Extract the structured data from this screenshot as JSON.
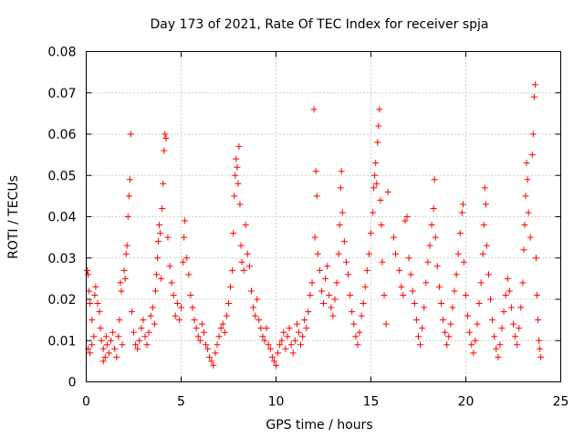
{
  "chart_data": {
    "type": "scatter",
    "title": "Day 173 of 2021, Rate Of TEC Index for receiver spja",
    "xlabel": "GPS time / hours",
    "ylabel": "ROTI / TECUs",
    "xlim": [
      0,
      25
    ],
    "ylim": [
      0,
      0.08
    ],
    "xticks": [
      0,
      5,
      10,
      15,
      20,
      25
    ],
    "xtick_labels": [
      "0",
      "5",
      "10",
      "15",
      "20",
      "25"
    ],
    "yticks": [
      0,
      0.01,
      0.02,
      0.03,
      0.04,
      0.05,
      0.06,
      0.07,
      0.08
    ],
    "ytick_labels": [
      "0",
      "0.01",
      "0.02",
      "0.03",
      "0.04",
      "0.05",
      "0.06",
      "0.07",
      "0.08"
    ],
    "grid": true,
    "marker": "+",
    "series": [
      {
        "name": "spja",
        "color": "#ff0000",
        "points": [
          [
            0.05,
            0.027
          ],
          [
            0.1,
            0.026
          ],
          [
            0.15,
            0.022
          ],
          [
            0.2,
            0.019
          ],
          [
            0.3,
            0.015
          ],
          [
            0.1,
            0.008
          ],
          [
            0.2,
            0.007
          ],
          [
            0.3,
            0.009
          ],
          [
            0.4,
            0.011
          ],
          [
            0.45,
            0.021
          ],
          [
            0.5,
            0.023
          ],
          [
            0.6,
            0.019
          ],
          [
            0.7,
            0.017
          ],
          [
            0.75,
            0.013
          ],
          [
            0.8,
            0.01
          ],
          [
            0.9,
            0.008
          ],
          [
            0.9,
            0.005
          ],
          [
            1.0,
            0.006
          ],
          [
            1.05,
            0.011
          ],
          [
            1.1,
            0.009
          ],
          [
            1.2,
            0.007
          ],
          [
            1.3,
            0.01
          ],
          [
            1.4,
            0.012
          ],
          [
            1.5,
            0.008
          ],
          [
            1.6,
            0.006
          ],
          [
            1.7,
            0.011
          ],
          [
            1.75,
            0.015
          ],
          [
            1.8,
            0.024
          ],
          [
            1.85,
            0.022
          ],
          [
            1.9,
            0.009
          ],
          [
            2.0,
            0.027
          ],
          [
            2.05,
            0.025
          ],
          [
            2.1,
            0.031
          ],
          [
            2.15,
            0.033
          ],
          [
            2.2,
            0.04
          ],
          [
            2.25,
            0.045
          ],
          [
            2.3,
            0.049
          ],
          [
            2.35,
            0.06
          ],
          [
            2.4,
            0.017
          ],
          [
            2.5,
            0.012
          ],
          [
            2.6,
            0.009
          ],
          [
            2.7,
            0.008
          ],
          [
            2.8,
            0.01
          ],
          [
            2.9,
            0.013
          ],
          [
            3.0,
            0.015
          ],
          [
            3.1,
            0.011
          ],
          [
            3.2,
            0.009
          ],
          [
            3.3,
            0.012
          ],
          [
            3.4,
            0.016
          ],
          [
            3.5,
            0.018
          ],
          [
            3.6,
            0.014
          ],
          [
            3.65,
            0.022
          ],
          [
            3.7,
            0.026
          ],
          [
            3.75,
            0.03
          ],
          [
            3.8,
            0.034
          ],
          [
            3.85,
            0.038
          ],
          [
            3.9,
            0.036
          ],
          [
            3.95,
            0.025
          ],
          [
            4.0,
            0.042
          ],
          [
            4.05,
            0.048
          ],
          [
            4.1,
            0.056
          ],
          [
            4.15,
            0.06
          ],
          [
            4.2,
            0.059
          ],
          [
            4.3,
            0.035
          ],
          [
            4.4,
            0.028
          ],
          [
            4.5,
            0.024
          ],
          [
            4.6,
            0.021
          ],
          [
            4.7,
            0.016
          ],
          [
            4.8,
            0.019
          ],
          [
            4.9,
            0.015
          ],
          [
            5.0,
            0.018
          ],
          [
            5.1,
            0.029
          ],
          [
            5.15,
            0.035
          ],
          [
            5.2,
            0.039
          ],
          [
            5.3,
            0.03
          ],
          [
            5.4,
            0.026
          ],
          [
            5.5,
            0.021
          ],
          [
            5.6,
            0.018
          ],
          [
            5.7,
            0.015
          ],
          [
            5.8,
            0.013
          ],
          [
            5.9,
            0.011
          ],
          [
            6.0,
            0.01
          ],
          [
            6.1,
            0.014
          ],
          [
            6.2,
            0.012
          ],
          [
            6.3,
            0.009
          ],
          [
            6.4,
            0.008
          ],
          [
            6.5,
            0.006
          ],
          [
            6.6,
            0.005
          ],
          [
            6.7,
            0.004
          ],
          [
            6.8,
            0.007
          ],
          [
            6.9,
            0.009
          ],
          [
            7.0,
            0.011
          ],
          [
            7.1,
            0.013
          ],
          [
            7.2,
            0.014
          ],
          [
            7.3,
            0.012
          ],
          [
            7.4,
            0.016
          ],
          [
            7.5,
            0.019
          ],
          [
            7.6,
            0.023
          ],
          [
            7.7,
            0.027
          ],
          [
            7.75,
            0.036
          ],
          [
            7.8,
            0.045
          ],
          [
            7.85,
            0.05
          ],
          [
            7.9,
            0.054
          ],
          [
            7.95,
            0.052
          ],
          [
            8.0,
            0.048
          ],
          [
            8.05,
            0.057
          ],
          [
            8.1,
            0.043
          ],
          [
            8.15,
            0.033
          ],
          [
            8.2,
            0.029
          ],
          [
            8.3,
            0.027
          ],
          [
            8.4,
            0.038
          ],
          [
            8.5,
            0.031
          ],
          [
            8.6,
            0.028
          ],
          [
            8.7,
            0.022
          ],
          [
            8.8,
            0.018
          ],
          [
            8.9,
            0.016
          ],
          [
            9.0,
            0.02
          ],
          [
            9.1,
            0.015
          ],
          [
            9.2,
            0.013
          ],
          [
            9.3,
            0.011
          ],
          [
            9.4,
            0.01
          ],
          [
            9.5,
            0.013
          ],
          [
            9.6,
            0.009
          ],
          [
            9.7,
            0.008
          ],
          [
            9.8,
            0.006
          ],
          [
            9.9,
            0.005
          ],
          [
            10.0,
            0.004
          ],
          [
            10.1,
            0.007
          ],
          [
            10.2,
            0.009
          ],
          [
            10.3,
            0.01
          ],
          [
            10.4,
            0.012
          ],
          [
            10.5,
            0.008
          ],
          [
            10.6,
            0.011
          ],
          [
            10.7,
            0.013
          ],
          [
            10.8,
            0.009
          ],
          [
            10.9,
            0.007
          ],
          [
            11.0,
            0.01
          ],
          [
            11.1,
            0.014
          ],
          [
            11.2,
            0.012
          ],
          [
            11.3,
            0.009
          ],
          [
            11.4,
            0.011
          ],
          [
            11.5,
            0.015
          ],
          [
            11.6,
            0.013
          ],
          [
            11.7,
            0.017
          ],
          [
            11.8,
            0.021
          ],
          [
            11.9,
            0.024
          ],
          [
            12.0,
            0.066
          ],
          [
            12.05,
            0.035
          ],
          [
            12.1,
            0.051
          ],
          [
            12.15,
            0.045
          ],
          [
            12.2,
            0.031
          ],
          [
            12.3,
            0.027
          ],
          [
            12.4,
            0.022
          ],
          [
            12.5,
            0.019
          ],
          [
            12.6,
            0.025
          ],
          [
            12.7,
            0.028
          ],
          [
            12.8,
            0.021
          ],
          [
            12.9,
            0.018
          ],
          [
            13.0,
            0.016
          ],
          [
            13.1,
            0.02
          ],
          [
            13.2,
            0.024
          ],
          [
            13.3,
            0.031
          ],
          [
            13.35,
            0.038
          ],
          [
            13.4,
            0.047
          ],
          [
            13.45,
            0.051
          ],
          [
            13.5,
            0.041
          ],
          [
            13.6,
            0.034
          ],
          [
            13.7,
            0.029
          ],
          [
            13.8,
            0.026
          ],
          [
            13.9,
            0.021
          ],
          [
            14.0,
            0.017
          ],
          [
            14.1,
            0.014
          ],
          [
            14.2,
            0.011
          ],
          [
            14.3,
            0.009
          ],
          [
            14.4,
            0.012
          ],
          [
            14.5,
            0.016
          ],
          [
            14.6,
            0.019
          ],
          [
            14.7,
            0.023
          ],
          [
            14.8,
            0.027
          ],
          [
            14.9,
            0.031
          ],
          [
            15.0,
            0.036
          ],
          [
            15.1,
            0.041
          ],
          [
            15.15,
            0.047
          ],
          [
            15.2,
            0.05
          ],
          [
            15.25,
            0.053
          ],
          [
            15.3,
            0.048
          ],
          [
            15.35,
            0.058
          ],
          [
            15.4,
            0.062
          ],
          [
            15.45,
            0.066
          ],
          [
            15.5,
            0.044
          ],
          [
            15.55,
            0.038
          ],
          [
            15.6,
            0.029
          ],
          [
            15.7,
            0.021
          ],
          [
            15.8,
            0.014
          ],
          [
            15.9,
            0.046
          ],
          [
            16.2,
            0.035
          ],
          [
            16.3,
            0.031
          ],
          [
            16.5,
            0.027
          ],
          [
            16.6,
            0.023
          ],
          [
            16.7,
            0.021
          ],
          [
            16.8,
            0.039
          ],
          [
            16.9,
            0.04
          ],
          [
            17.0,
            0.03
          ],
          [
            17.1,
            0.026
          ],
          [
            17.2,
            0.022
          ],
          [
            17.3,
            0.019
          ],
          [
            17.4,
            0.015
          ],
          [
            17.5,
            0.011
          ],
          [
            17.6,
            0.009
          ],
          [
            17.7,
            0.013
          ],
          [
            17.8,
            0.018
          ],
          [
            17.9,
            0.024
          ],
          [
            18.0,
            0.029
          ],
          [
            18.1,
            0.033
          ],
          [
            18.2,
            0.038
          ],
          [
            18.3,
            0.042
          ],
          [
            18.35,
            0.049
          ],
          [
            18.4,
            0.035
          ],
          [
            18.5,
            0.028
          ],
          [
            18.6,
            0.023
          ],
          [
            18.7,
            0.019
          ],
          [
            18.8,
            0.015
          ],
          [
            18.9,
            0.012
          ],
          [
            19.0,
            0.009
          ],
          [
            19.1,
            0.011
          ],
          [
            19.2,
            0.014
          ],
          [
            19.3,
            0.018
          ],
          [
            19.4,
            0.022
          ],
          [
            19.5,
            0.026
          ],
          [
            19.6,
            0.031
          ],
          [
            19.7,
            0.036
          ],
          [
            19.8,
            0.041
          ],
          [
            19.85,
            0.043
          ],
          [
            19.9,
            0.029
          ],
          [
            20.0,
            0.021
          ],
          [
            20.1,
            0.016
          ],
          [
            20.2,
            0.012
          ],
          [
            20.3,
            0.009
          ],
          [
            20.4,
            0.007
          ],
          [
            20.5,
            0.01
          ],
          [
            20.6,
            0.014
          ],
          [
            20.7,
            0.019
          ],
          [
            20.8,
            0.024
          ],
          [
            20.9,
            0.031
          ],
          [
            20.95,
            0.038
          ],
          [
            21.0,
            0.047
          ],
          [
            21.05,
            0.043
          ],
          [
            21.1,
            0.033
          ],
          [
            21.2,
            0.026
          ],
          [
            21.3,
            0.02
          ],
          [
            21.4,
            0.015
          ],
          [
            21.5,
            0.011
          ],
          [
            21.6,
            0.008
          ],
          [
            21.7,
            0.006
          ],
          [
            21.8,
            0.009
          ],
          [
            21.9,
            0.013
          ],
          [
            22.0,
            0.017
          ],
          [
            22.1,
            0.021
          ],
          [
            22.2,
            0.025
          ],
          [
            22.3,
            0.022
          ],
          [
            22.4,
            0.018
          ],
          [
            22.5,
            0.014
          ],
          [
            22.6,
            0.011
          ],
          [
            22.7,
            0.009
          ],
          [
            22.8,
            0.013
          ],
          [
            22.9,
            0.018
          ],
          [
            23.0,
            0.024
          ],
          [
            23.05,
            0.032
          ],
          [
            23.1,
            0.038
          ],
          [
            23.15,
            0.045
          ],
          [
            23.2,
            0.053
          ],
          [
            23.25,
            0.049
          ],
          [
            23.3,
            0.041
          ],
          [
            23.4,
            0.035
          ],
          [
            23.5,
            0.055
          ],
          [
            23.55,
            0.06
          ],
          [
            23.6,
            0.069
          ],
          [
            23.65,
            0.072
          ],
          [
            23.7,
            0.03
          ],
          [
            23.75,
            0.021
          ],
          [
            23.8,
            0.015
          ],
          [
            23.85,
            0.01
          ],
          [
            23.9,
            0.008
          ],
          [
            23.95,
            0.006
          ]
        ]
      }
    ]
  }
}
